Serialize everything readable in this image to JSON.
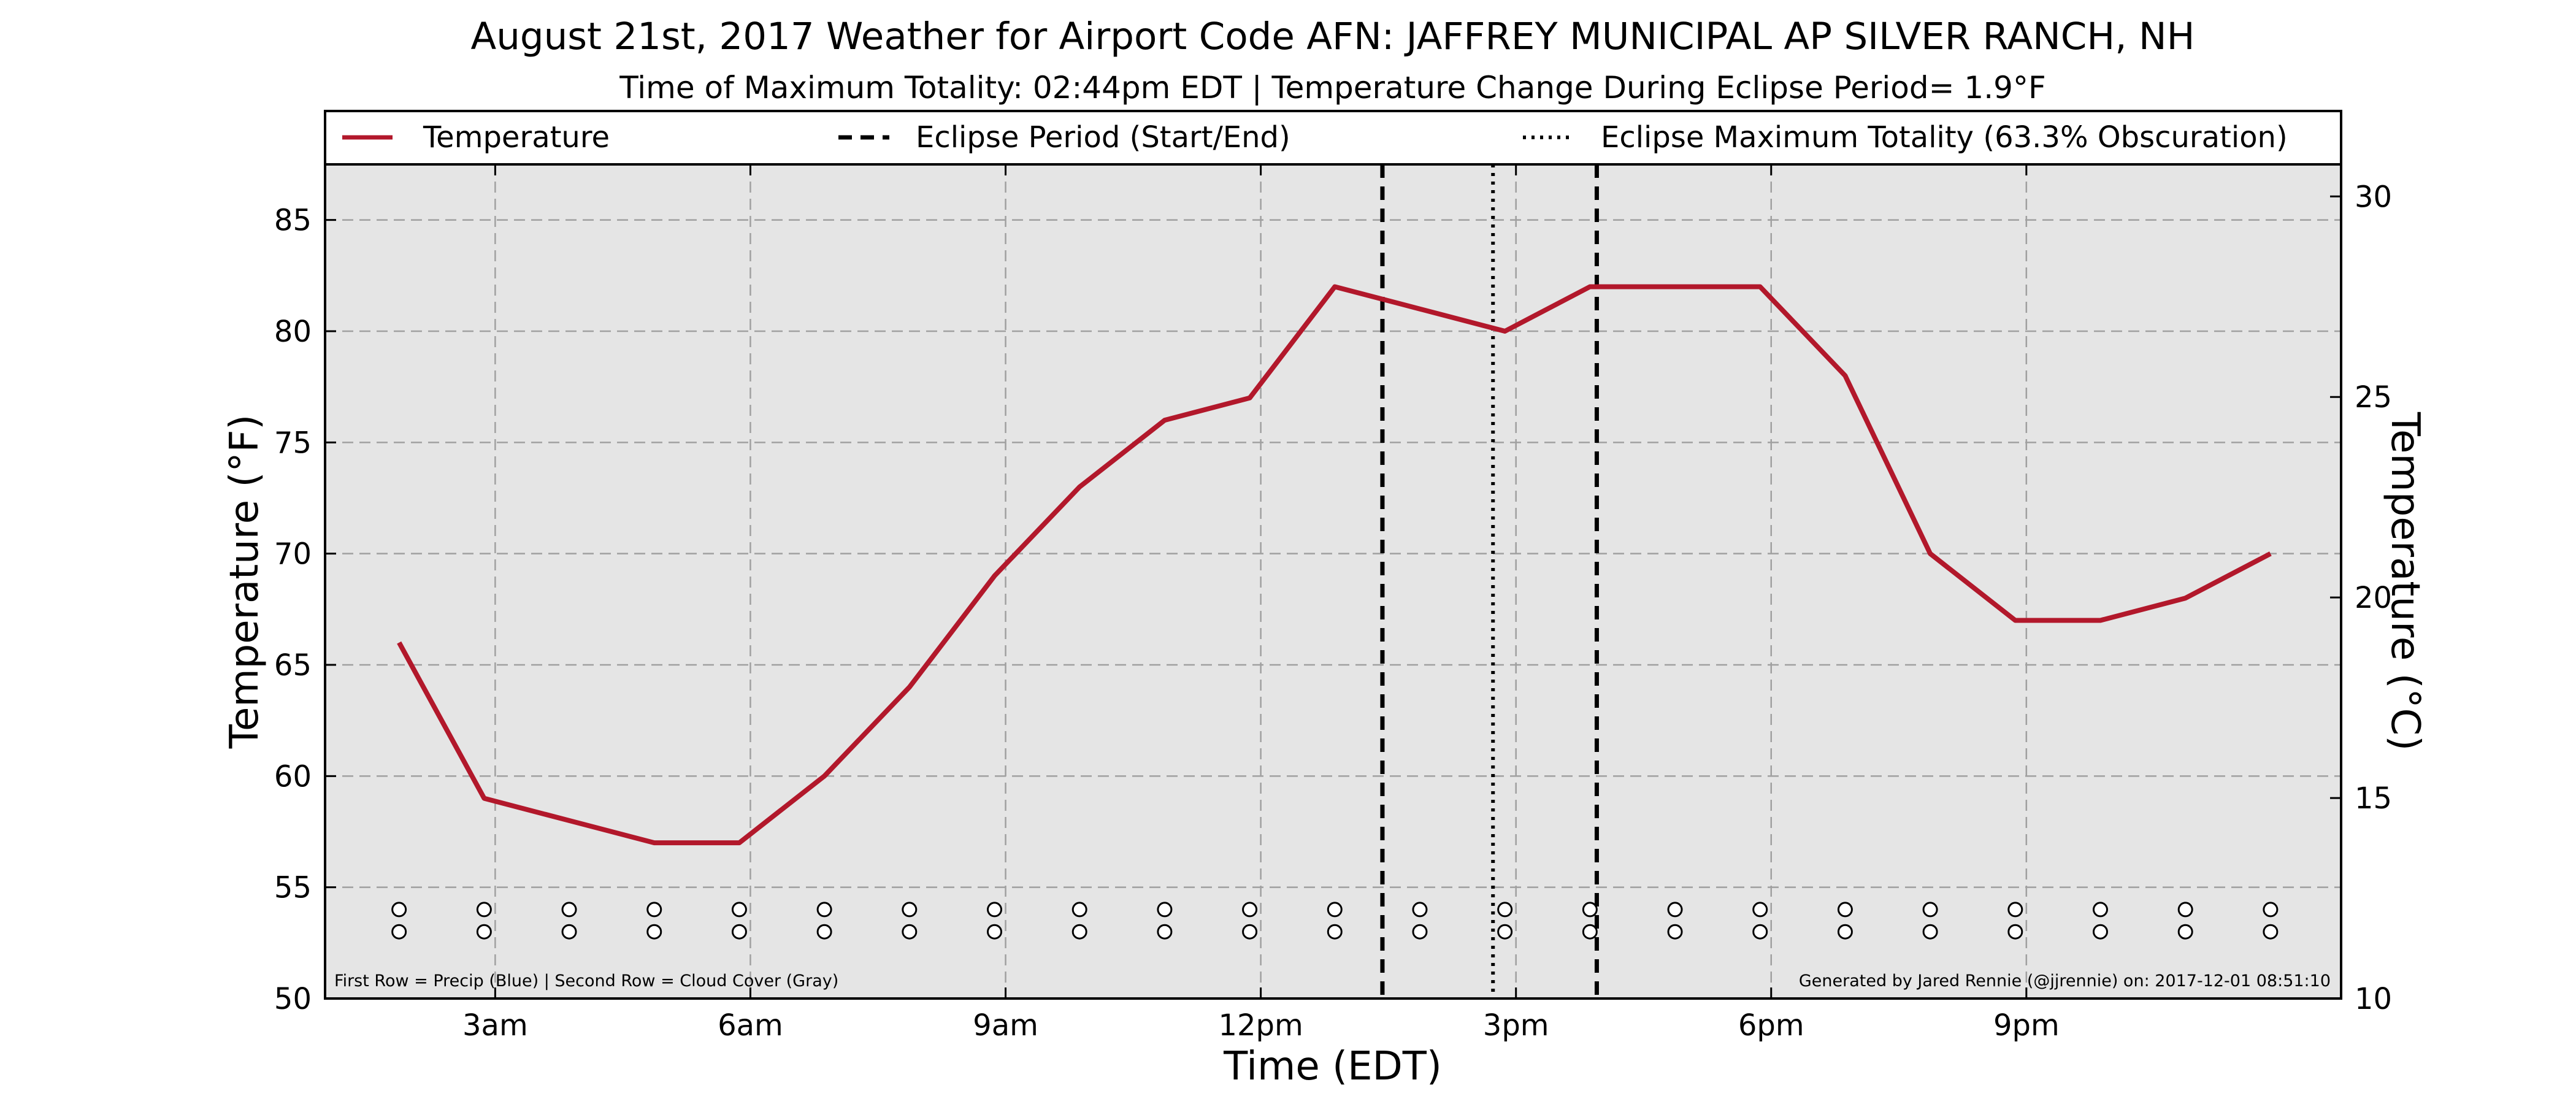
{
  "chart_data": {
    "type": "line",
    "title": "August 21st, 2017 Weather for Airport Code AFN: JAFFREY MUNICIPAL AP SILVER RANCH, NH",
    "subtitle": "Time of Maximum Totality: 02:44pm EDT | Temperature Change During Eclipse Period= 1.9$^\\circ$F",
    "subtitle_display": "Time of Maximum Totality: 02:44pm EDT | Temperature Change During Eclipse Period= 1.9°F",
    "xlabel": "Time (EDT)",
    "ylabel": "Temperature (°F)",
    "ylabel_right": "Temperature (°C)",
    "xlim": [
      1.0,
      24.7
    ],
    "ylim": [
      50,
      87.5
    ],
    "ylim_right": [
      10,
      30.8
    ],
    "x_ticks": [
      {
        "x": 3,
        "label": "3am"
      },
      {
        "x": 6,
        "label": "6am"
      },
      {
        "x": 9,
        "label": "9am"
      },
      {
        "x": 12,
        "label": "12pm"
      },
      {
        "x": 15,
        "label": "3pm"
      },
      {
        "x": 18,
        "label": "6pm"
      },
      {
        "x": 21,
        "label": "9pm"
      }
    ],
    "y_ticks": [
      50,
      55,
      60,
      65,
      70,
      75,
      80,
      85
    ],
    "y_ticks_right": [
      10,
      15,
      20,
      25,
      30
    ],
    "grid": true,
    "series": [
      {
        "name": "Temperature",
        "color": "#b2182b",
        "x": [
          1.87,
          2.87,
          3.87,
          4.87,
          5.87,
          6.87,
          7.87,
          8.87,
          9.87,
          10.87,
          11.87,
          12.87,
          13.87,
          14.87,
          15.87,
          16.87,
          17.87,
          18.87,
          19.87,
          20.87,
          21.87,
          22.87,
          23.87
        ],
        "values": [
          66,
          59,
          58,
          57,
          57,
          60,
          64,
          69,
          73,
          76,
          77,
          82,
          81,
          80,
          82,
          82,
          82,
          78,
          70,
          67,
          67,
          68,
          70
        ]
      }
    ],
    "eclipse_period": {
      "start": 13.43,
      "end": 15.95,
      "label": "Eclipse Period (Start/End)"
    },
    "max_totality": {
      "x": 14.73,
      "label": "Eclipse Maximum Totality (63.3% Obscuration)"
    },
    "marker_rows": {
      "x": [
        1.87,
        2.87,
        3.87,
        4.87,
        5.87,
        6.87,
        7.87,
        8.87,
        9.87,
        10.87,
        11.87,
        12.87,
        13.87,
        14.87,
        15.87,
        16.87,
        17.87,
        18.87,
        19.87,
        20.87,
        21.87,
        22.87,
        23.87
      ],
      "rows": [
        54.0,
        53.0
      ],
      "precip_color": "#ffffff",
      "cloud_color": "#ffffff"
    },
    "legend_placement": "top, above plot",
    "legend": [
      {
        "label": "Temperature",
        "style": "solid",
        "color": "#b2182b"
      },
      {
        "label": "Eclipse Period (Start/End)",
        "style": "dashed",
        "color": "#000000"
      },
      {
        "label": "Eclipse Maximum Totality (63.3% Obscuration)",
        "style": "dotted",
        "color": "#000000"
      }
    ],
    "note_left": "First Row = Precip (Blue) | Second Row = Cloud Cover (Gray)",
    "note_right": "Generated by Jared Rennie (@jjrennie) on: 2017-12-01 08:51:10",
    "plot_background": "#e5e5e5"
  }
}
